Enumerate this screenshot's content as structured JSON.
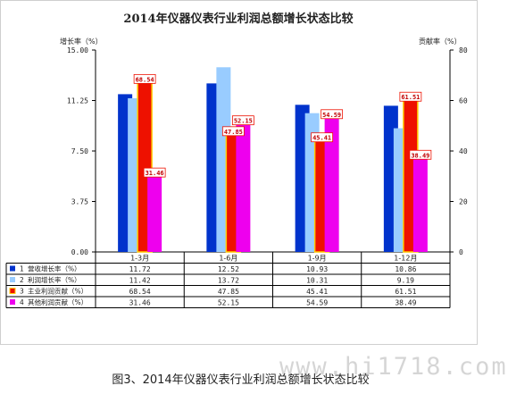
{
  "caption": "图3、2014年仪器仪表行业利润总额增长状态比较",
  "watermark": "www.hi1718.com",
  "chart_data": {
    "type": "bar",
    "title": "2014年仪器仪表行业利润总额增长状态比较",
    "ylabel_left": "增长率（%）",
    "ylabel_right": "贡献率（%）",
    "ylim_left": [
      0,
      15
    ],
    "ylim_right": [
      0,
      80
    ],
    "yticks_left": [
      "0.00",
      "3.75",
      "7.50",
      "11.25",
      "15.00"
    ],
    "yticks_right": [
      "0",
      "20",
      "40",
      "60",
      "80"
    ],
    "grid": false,
    "categories": [
      "1-3月",
      "1-6月",
      "1-9月",
      "1-12月"
    ],
    "series": [
      {
        "name": "营收增长率（%）",
        "index": "1",
        "axis": "left",
        "color": "#0033cc",
        "values": [
          11.72,
          12.52,
          10.93,
          10.86
        ],
        "labels": [
          "11.72",
          "12.52",
          "10.93",
          "10.86"
        ]
      },
      {
        "name": "利润增长率（%）",
        "index": "2",
        "axis": "left",
        "color": "#99ccff",
        "values": [
          11.42,
          13.72,
          10.31,
          9.19
        ],
        "labels": [
          "11.42",
          "13.72",
          "10.31",
          "9.19"
        ]
      },
      {
        "name": "主业利润贡献（%）",
        "index": "3",
        "axis": "right",
        "color": "#ee1100",
        "values": [
          68.54,
          47.85,
          45.41,
          61.51
        ],
        "labels": [
          "68.54",
          "47.85",
          "45.41",
          "61.51"
        ]
      },
      {
        "name": "其他利润贡献（%）",
        "index": "4",
        "axis": "right",
        "color": "#ee00ee",
        "values": [
          31.46,
          52.15,
          54.59,
          38.49
        ],
        "labels": [
          "31.46",
          "52.15",
          "54.59",
          "38.49"
        ]
      }
    ]
  }
}
